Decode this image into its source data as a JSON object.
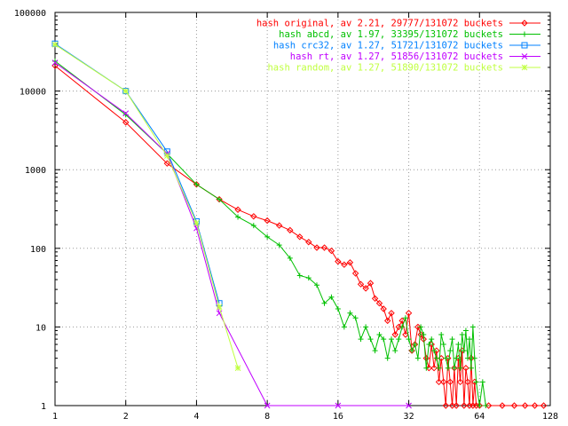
{
  "chart_data": {
    "type": "line",
    "title": "",
    "xlabel": "",
    "ylabel": "",
    "x_scale": "log2",
    "y_scale": "log10",
    "xlim": [
      1,
      128
    ],
    "ylim": [
      1,
      100000
    ],
    "grid": true,
    "legend_position": "top-right",
    "x_ticks": [
      "1",
      "2",
      "4",
      "8",
      "16",
      "32",
      "64",
      "128"
    ],
    "y_ticks": [
      "1",
      "10",
      "100",
      "1000",
      "10000",
      "100000"
    ],
    "series": [
      {
        "name": "hash original, av 2.21, 29777/131072 buckets",
        "color": "#ff0000",
        "marker": "diamond",
        "x": [
          1,
          2,
          3,
          4,
          5,
          6,
          7,
          8,
          9,
          10,
          11,
          12,
          13,
          14,
          15,
          16,
          17,
          18,
          19,
          20,
          21,
          22,
          23,
          24,
          25,
          26,
          27,
          28,
          29,
          30,
          31,
          32,
          33,
          34,
          35,
          36,
          37,
          38,
          39,
          40,
          41,
          42,
          43,
          44,
          45,
          46,
          47,
          48,
          49,
          50,
          51,
          52,
          53,
          54,
          55,
          56,
          57,
          58,
          59,
          60,
          61,
          62,
          64,
          70,
          80,
          90,
          100,
          110,
          120
        ],
        "values": [
          21000,
          4000,
          1200,
          650,
          420,
          310,
          255,
          225,
          195,
          170,
          140,
          120,
          102,
          102,
          93,
          68,
          62,
          66,
          48,
          35,
          31,
          36,
          23,
          20,
          17,
          12,
          15,
          8,
          10,
          12,
          8,
          15,
          5,
          6,
          10,
          8,
          7,
          4,
          3,
          6,
          3,
          5,
          2,
          4,
          2,
          1,
          4,
          2,
          1,
          3,
          1,
          4,
          2,
          5,
          1,
          3,
          2,
          1,
          4,
          1,
          2,
          1,
          1,
          1,
          1,
          1,
          1,
          1,
          1
        ]
      },
      {
        "name": "hash abcd, av 1.97, 33395/131072 buckets",
        "color": "#00c000",
        "marker": "plus",
        "x": [
          1,
          2,
          3,
          4,
          5,
          6,
          7,
          8,
          9,
          10,
          11,
          12,
          13,
          14,
          15,
          16,
          17,
          18,
          19,
          20,
          21,
          22,
          23,
          24,
          25,
          26,
          27,
          28,
          29,
          30,
          31,
          32,
          33,
          34,
          35,
          36,
          37,
          38,
          39,
          40,
          41,
          42,
          43,
          44,
          45,
          46,
          47,
          48,
          49,
          50,
          51,
          52,
          53,
          54,
          55,
          56,
          57,
          58,
          59,
          60,
          61,
          62,
          64,
          66,
          68
        ],
        "values": [
          24000,
          5000,
          1600,
          650,
          420,
          250,
          195,
          140,
          110,
          75,
          45,
          42,
          34,
          20,
          24,
          17,
          10,
          15,
          13,
          7,
          10,
          7,
          5,
          8,
          7,
          4,
          7,
          5,
          7,
          10,
          13,
          7,
          5,
          6,
          4,
          10,
          8,
          3,
          6,
          7,
          5,
          4,
          3,
          8,
          6,
          4,
          3,
          5,
          7,
          3,
          4,
          6,
          3,
          8,
          5,
          9,
          4,
          7,
          3,
          10,
          4,
          2,
          1,
          2,
          1
        ]
      },
      {
        "name": "hash crc32, av 1.27, 51721/131072 buckets",
        "color": "#0080ff",
        "marker": "square",
        "x": [
          1,
          2,
          3,
          4,
          5
        ],
        "values": [
          40000,
          10000,
          1700,
          220,
          20
        ]
      },
      {
        "name": "hash rt, av 1.27, 51856/131072 buckets",
        "color": "#c000ff",
        "marker": "x",
        "x": [
          1,
          2,
          3,
          4,
          5,
          8,
          16,
          32
        ],
        "values": [
          23000,
          5200,
          1600,
          180,
          15,
          1,
          1,
          1
        ]
      },
      {
        "name": "hash random, av 1.27, 51890/131072 buckets",
        "color": "#c0ff40",
        "marker": "star",
        "x": [
          1,
          2,
          3,
          4,
          5,
          6
        ],
        "values": [
          39000,
          10000,
          1500,
          210,
          18,
          3
        ]
      }
    ]
  }
}
